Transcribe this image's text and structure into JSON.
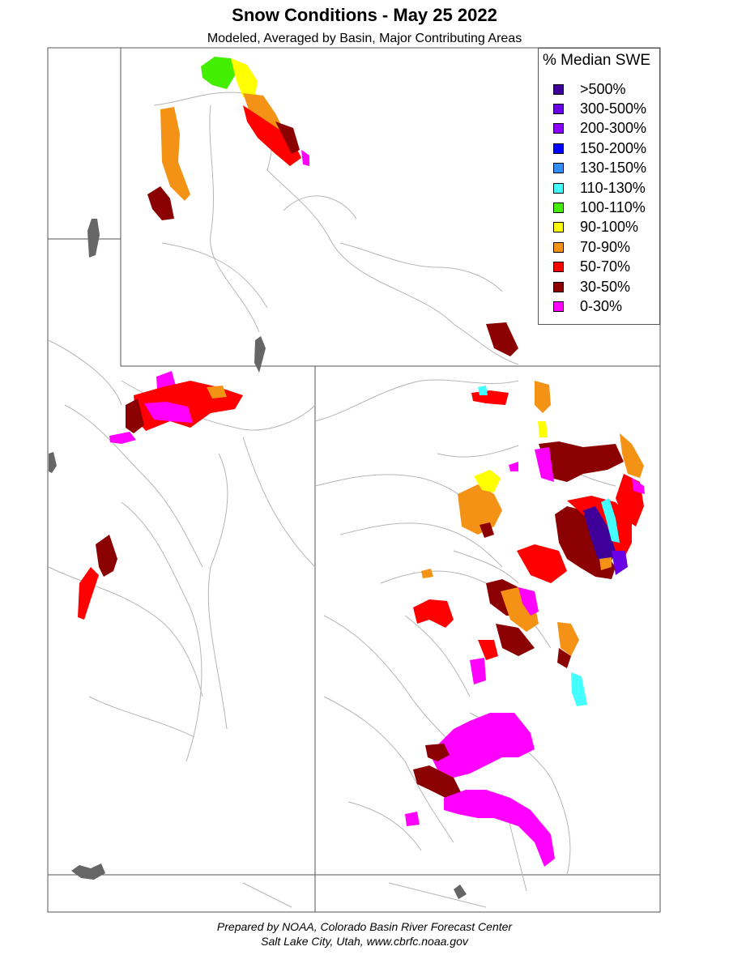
{
  "title": "Snow Conditions - May 25 2022",
  "subtitle": "Modeled, Averaged by Basin, Major Contributing Areas",
  "legend": {
    "title": "% Median SWE",
    "items": [
      {
        "label": ">500%",
        "color": "#3f0099"
      },
      {
        "label": "300-500%",
        "color": "#6a00e6"
      },
      {
        "label": "200-300%",
        "color": "#8a00ff"
      },
      {
        "label": "150-200%",
        "color": "#0000ff"
      },
      {
        "label": "130-150%",
        "color": "#2f8fff"
      },
      {
        "label": "110-130%",
        "color": "#44ffff"
      },
      {
        "label": "100-110%",
        "color": "#44ee00"
      },
      {
        "label": "90-100%",
        "color": "#ffff00"
      },
      {
        "label": "70-90%",
        "color": "#f39214"
      },
      {
        "label": "50-70%",
        "color": "#ff0000"
      },
      {
        "label": "30-50%",
        "color": "#8b0000"
      },
      {
        "label": "0-30%",
        "color": "#ff00ff"
      }
    ]
  },
  "footer": {
    "line1": "Prepared by NOAA, Colorado Basin River Forecast Center",
    "line2": "Salt Lake City, Utah, www.cbrfc.noaa.gov"
  }
}
